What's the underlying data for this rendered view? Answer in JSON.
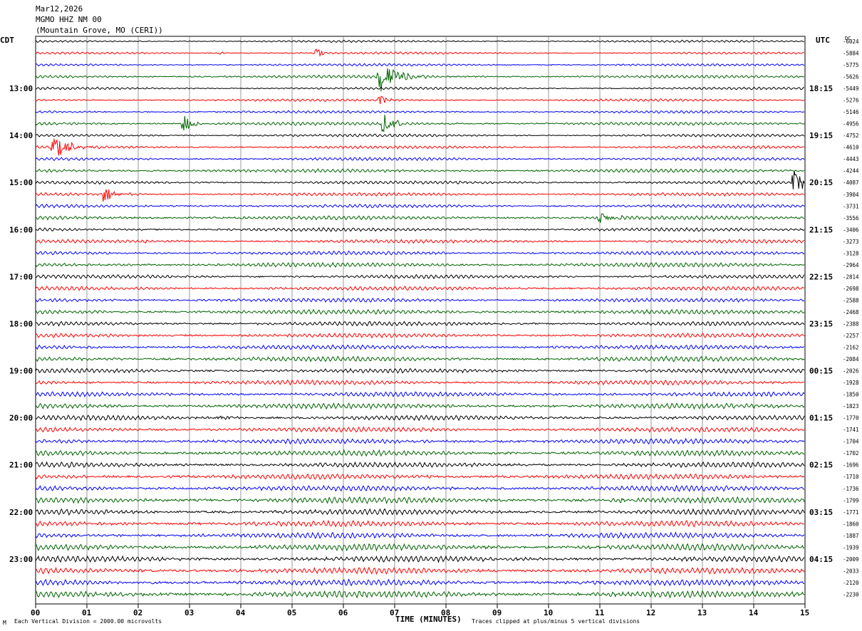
{
  "header": {
    "date": "Mar12,2026",
    "station": "MGMO HHZ NM 00",
    "location": "(Mountain Grove, MO (CERI))"
  },
  "left_tz": "CDT",
  "right_tz": "UTC",
  "dc_header": "DC",
  "footer": {
    "scale": "Each Vertical Division = 2000.00 microvolts",
    "clip": "Traces clipped at plus/minus 5 vertical divisions",
    "corner_mark": "M"
  },
  "chart_data": {
    "type": "line",
    "xlabel": "TIME (MINUTES)",
    "x_ticks": [
      "00",
      "01",
      "02",
      "03",
      "04",
      "05",
      "06",
      "07",
      "08",
      "09",
      "10",
      "11",
      "12",
      "13",
      "14",
      "15"
    ],
    "xlim": [
      0,
      15
    ],
    "trace_colors": [
      "#000000",
      "#ff0000",
      "#0000ff",
      "#006400"
    ],
    "left_hour_labels": [
      "13:00",
      "14:00",
      "15:00",
      "16:00",
      "17:00",
      "18:00",
      "19:00",
      "20:00",
      "21:00",
      "22:00",
      "23:00"
    ],
    "right_hour_labels": [
      "18:15",
      "19:15",
      "20:15",
      "21:15",
      "22:15",
      "23:15",
      "00:15",
      "01:15",
      "02:15",
      "03:15",
      "04:15"
    ],
    "first_hour_label_row": 4,
    "rows_per_hour": 4,
    "dc_offsets": [
      "-6024",
      "-5884",
      "-5775",
      "-5626",
      "-5449",
      "-5276",
      "-5146",
      "-4956",
      "-4752",
      "-4610",
      "-4443",
      "-4244",
      "-4087",
      "-3904",
      "-3731",
      "-3556",
      "-3406",
      "-3273",
      "-3128",
      "-2964",
      "-2814",
      "-2698",
      "-2588",
      "-2468",
      "-2388",
      "-2257",
      "-2162",
      "-2084",
      "-2026",
      "-1928",
      "-1850",
      "-1823",
      "-1770",
      "-1741",
      "-1704",
      "-1702",
      "-1696",
      "-1710",
      "-1736",
      "-1799",
      "-1771",
      "-1860",
      "-1887",
      "-1939",
      "-2009",
      "-2033",
      "-2120",
      "-2230"
    ],
    "events": [
      {
        "row": 1,
        "minute": 5.5,
        "amp": 7,
        "dur": 0.15
      },
      {
        "row": 1,
        "minute": 3.6,
        "amp": 3,
        "dur": 0.1
      },
      {
        "row": 3,
        "minute": 6.7,
        "amp": 22,
        "dur": 0.5
      },
      {
        "row": 5,
        "minute": 6.7,
        "amp": 8,
        "dur": 0.2
      },
      {
        "row": 7,
        "minute": 2.9,
        "amp": 14,
        "dur": 0.2
      },
      {
        "row": 7,
        "minute": 6.8,
        "amp": 15,
        "dur": 0.3
      },
      {
        "row": 9,
        "minute": 0.35,
        "amp": 16,
        "dur": 0.5
      },
      {
        "row": 12,
        "minute": 14.8,
        "amp": 18,
        "dur": 0.4
      },
      {
        "row": 13,
        "minute": 1.35,
        "amp": 12,
        "dur": 0.35
      },
      {
        "row": 15,
        "minute": 11.0,
        "amp": 6,
        "dur": 0.5
      },
      {
        "row": 17,
        "minute": 2.15,
        "amp": 3,
        "dur": 0.1
      },
      {
        "row": 32,
        "minute": 3.6,
        "amp": 3,
        "dur": 0.3
      },
      {
        "row": 39,
        "minute": 11.4,
        "amp": 3,
        "dur": 0.3
      }
    ]
  }
}
